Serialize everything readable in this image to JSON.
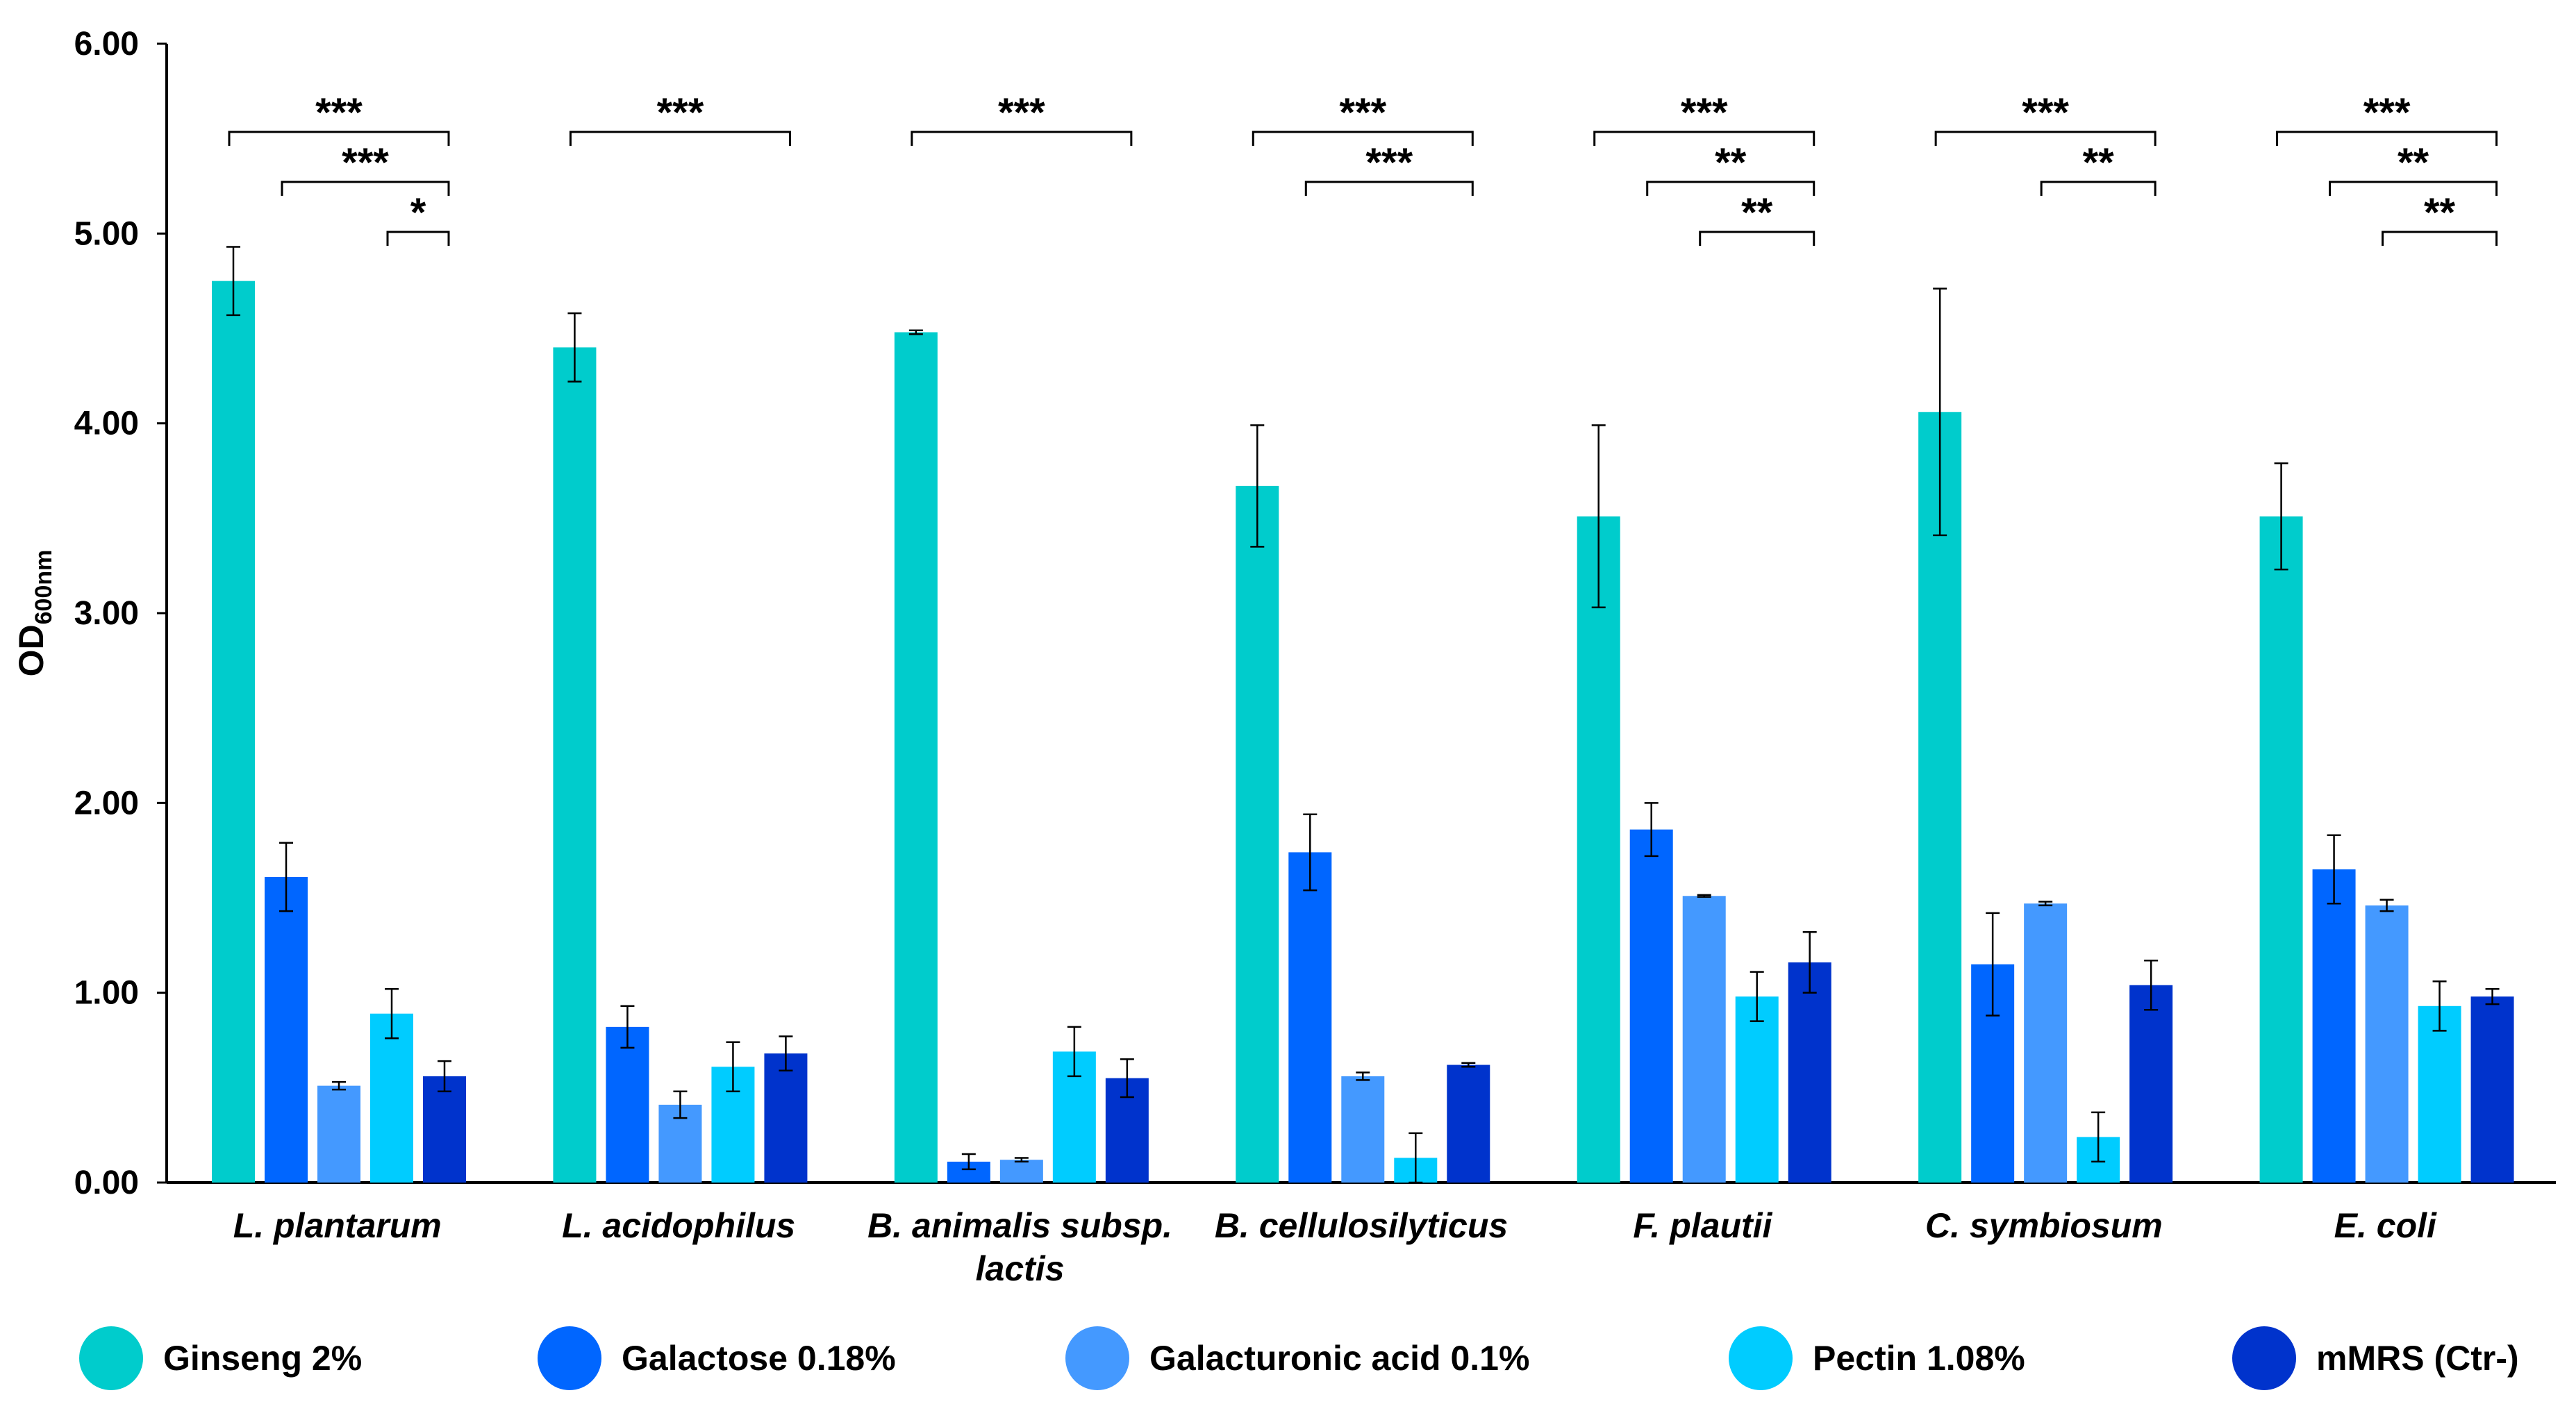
{
  "chart_data": {
    "type": "bar",
    "title": "",
    "xlabel": "",
    "ylabel": "OD",
    "ylabel_subscript": "600nm",
    "ylim": [
      0,
      6
    ],
    "yticks": [
      "0.00",
      "1.00",
      "2.00",
      "3.00",
      "4.00",
      "5.00",
      "6.00"
    ],
    "categories": [
      [
        "L. plantarum"
      ],
      [
        "L. acidophilus"
      ],
      [
        "B. animalis subsp.",
        "lactis"
      ],
      [
        "B. cellulosilyticus"
      ],
      [
        "F. plautii"
      ],
      [
        "C. symbiosum"
      ],
      [
        "E. coli"
      ]
    ],
    "series": [
      {
        "name": "Ginseng 2%",
        "color": "#00cccc",
        "values": [
          4.75,
          4.4,
          4.48,
          3.67,
          3.51,
          4.06,
          3.51
        ],
        "errors": [
          0.18,
          0.18,
          0.01,
          0.32,
          0.48,
          0.65,
          0.28
        ]
      },
      {
        "name": "Galactose 0.18%",
        "color": "#0066ff",
        "values": [
          1.61,
          0.82,
          0.11,
          1.74,
          1.86,
          1.15,
          1.65
        ],
        "errors": [
          0.18,
          0.11,
          0.04,
          0.2,
          0.14,
          0.27,
          0.18
        ]
      },
      {
        "name": "Galacturonic acid 0.1%",
        "color": "#4499ff",
        "values": [
          0.51,
          0.41,
          0.12,
          0.56,
          1.51,
          1.47,
          1.46
        ],
        "errors": [
          0.02,
          0.07,
          0.01,
          0.02,
          0.005,
          0.01,
          0.03
        ]
      },
      {
        "name": "Pectin 1.08%",
        "color": "#00ccff",
        "values": [
          0.89,
          0.61,
          0.69,
          0.13,
          0.98,
          0.24,
          0.93
        ],
        "errors": [
          0.13,
          0.13,
          0.13,
          0.13,
          0.13,
          0.13,
          0.13
        ]
      },
      {
        "name": "mMRS (Ctr-)",
        "color": "#0033cc",
        "values": [
          0.56,
          0.68,
          0.55,
          0.62,
          1.16,
          1.04,
          0.98
        ],
        "errors": [
          0.08,
          0.09,
          0.1,
          0.01,
          0.16,
          0.13,
          0.04
        ]
      }
    ],
    "significance": [
      {
        "group": 0,
        "from": 0,
        "to": 4,
        "level": 0,
        "label": "***"
      },
      {
        "group": 0,
        "from": 1,
        "to": 4,
        "level": 1,
        "label": "***"
      },
      {
        "group": 0,
        "from": 3,
        "to": 4,
        "level": 2,
        "label": "*"
      },
      {
        "group": 1,
        "from": 0,
        "to": 4,
        "level": 0,
        "label": "***"
      },
      {
        "group": 2,
        "from": 0,
        "to": 4,
        "level": 0,
        "label": "***"
      },
      {
        "group": 3,
        "from": 0,
        "to": 4,
        "level": 0,
        "label": "***"
      },
      {
        "group": 3,
        "from": 1,
        "to": 4,
        "level": 1,
        "label": "***"
      },
      {
        "group": 4,
        "from": 0,
        "to": 4,
        "level": 0,
        "label": "***"
      },
      {
        "group": 4,
        "from": 1,
        "to": 4,
        "level": 1,
        "label": "**"
      },
      {
        "group": 4,
        "from": 2,
        "to": 4,
        "level": 2,
        "label": "**"
      },
      {
        "group": 5,
        "from": 0,
        "to": 4,
        "level": 0,
        "label": "***"
      },
      {
        "group": 5,
        "from": 2,
        "to": 4,
        "level": 1,
        "label": "**"
      },
      {
        "group": 6,
        "from": 0,
        "to": 4,
        "level": 0,
        "label": "***"
      },
      {
        "group": 6,
        "from": 1,
        "to": 4,
        "level": 1,
        "label": "**"
      },
      {
        "group": 6,
        "from": 2,
        "to": 4,
        "level": 2,
        "label": "**"
      }
    ],
    "legend_position": "bottom"
  }
}
